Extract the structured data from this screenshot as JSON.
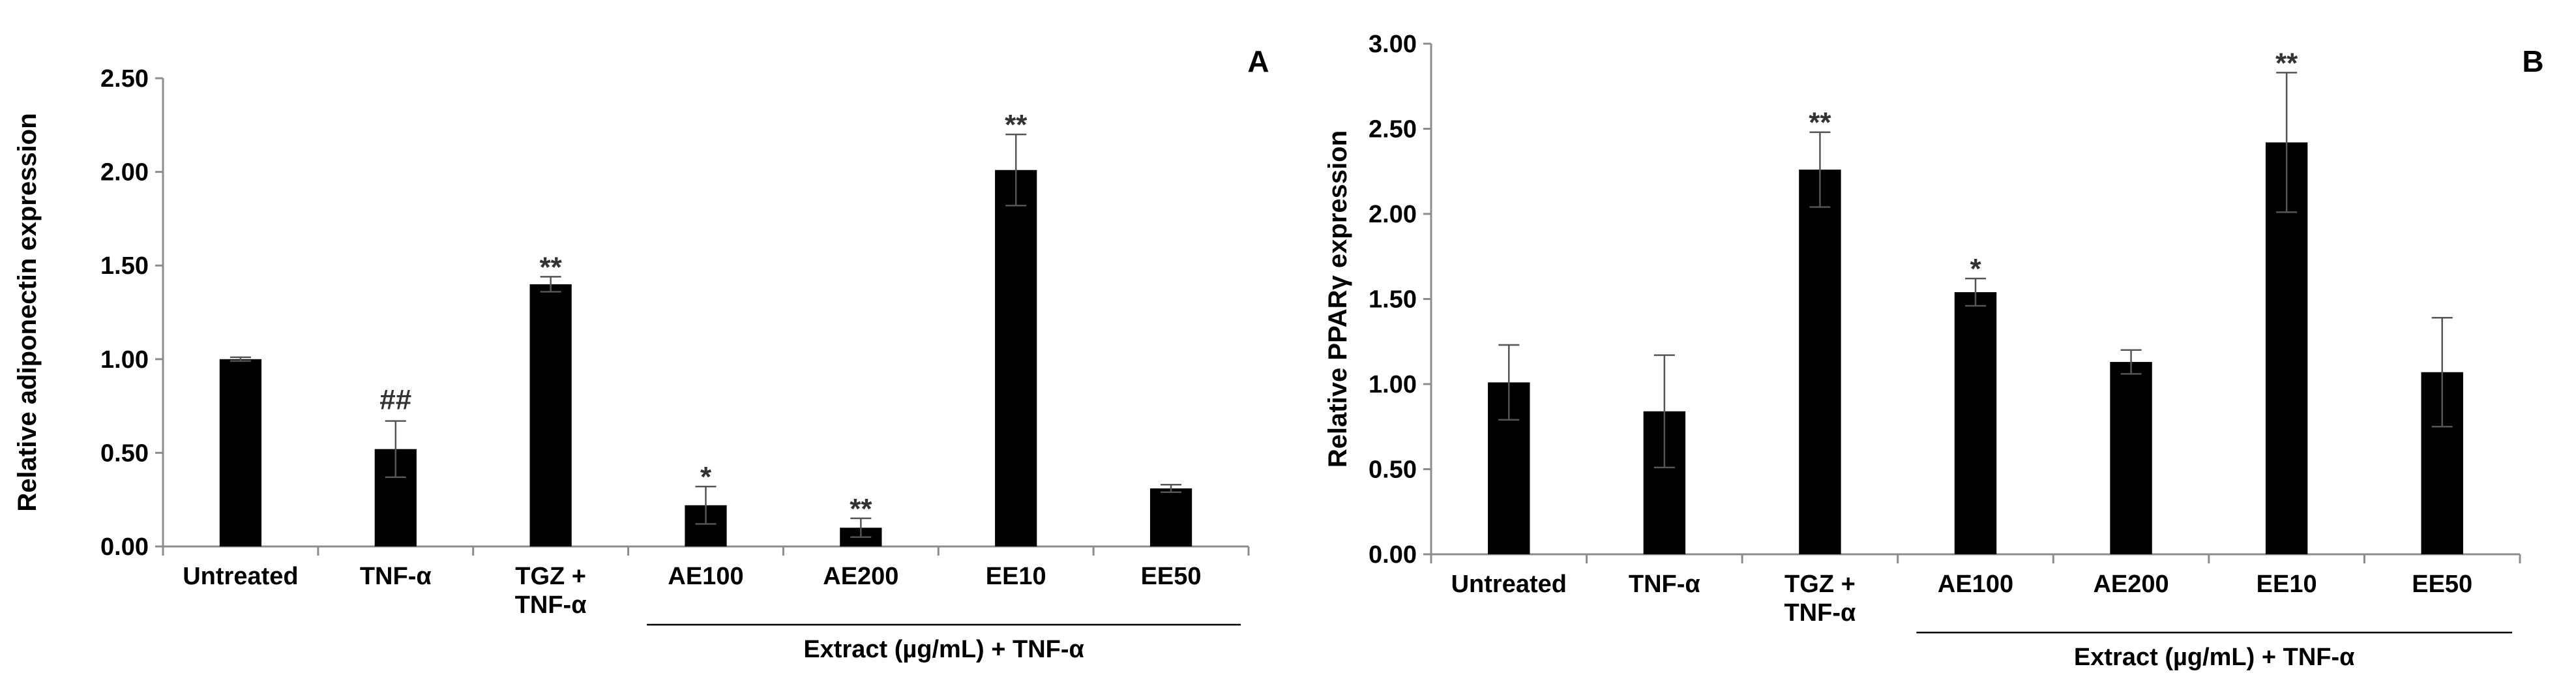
{
  "chart_data": [
    {
      "type": "bar",
      "panel_label": "A",
      "ylabel": "Relative adiponectin expression",
      "ylim": [
        0,
        2.5
      ],
      "yticks": [
        "0.00",
        "0.50",
        "1.00",
        "1.50",
        "2.00",
        "2.50"
      ],
      "categories": [
        [
          "Untreated"
        ],
        [
          "TNF-α"
        ],
        [
          "TGZ  +",
          "TNF-α"
        ],
        [
          "AE100"
        ],
        [
          "AE200"
        ],
        [
          "EE10"
        ],
        [
          "EE50"
        ]
      ],
      "values": [
        1.0,
        0.52,
        1.4,
        0.22,
        0.1,
        2.01,
        0.31
      ],
      "errors": [
        0.01,
        0.15,
        0.04,
        0.1,
        0.05,
        0.19,
        0.02
      ],
      "annotations": [
        "",
        "##",
        "**",
        "*",
        "**",
        "**",
        ""
      ],
      "group_label": "Extract (µg/mL) + TNF-α",
      "group_start_index": 3,
      "grid": false
    },
    {
      "type": "bar",
      "panel_label": "B",
      "ylabel": "Relative PPARγ expression",
      "ylim": [
        0,
        3.0
      ],
      "yticks": [
        "0.00",
        "0.50",
        "1.00",
        "1.50",
        "2.00",
        "2.50",
        "3.00"
      ],
      "categories": [
        [
          "Untreated"
        ],
        [
          "TNF-α"
        ],
        [
          "TGZ  +",
          "TNF-α"
        ],
        [
          "AE100"
        ],
        [
          "AE200"
        ],
        [
          "EE10"
        ],
        [
          "EE50"
        ]
      ],
      "values": [
        1.01,
        0.84,
        2.26,
        1.54,
        1.13,
        2.42,
        1.07
      ],
      "errors": [
        0.22,
        0.33,
        0.22,
        0.08,
        0.07,
        0.41,
        0.32
      ],
      "annotations": [
        "",
        "",
        "**",
        "*",
        "",
        "**",
        ""
      ],
      "group_label": "Extract (µg/mL) + TNF-α",
      "group_start_index": 3,
      "grid": false
    }
  ]
}
